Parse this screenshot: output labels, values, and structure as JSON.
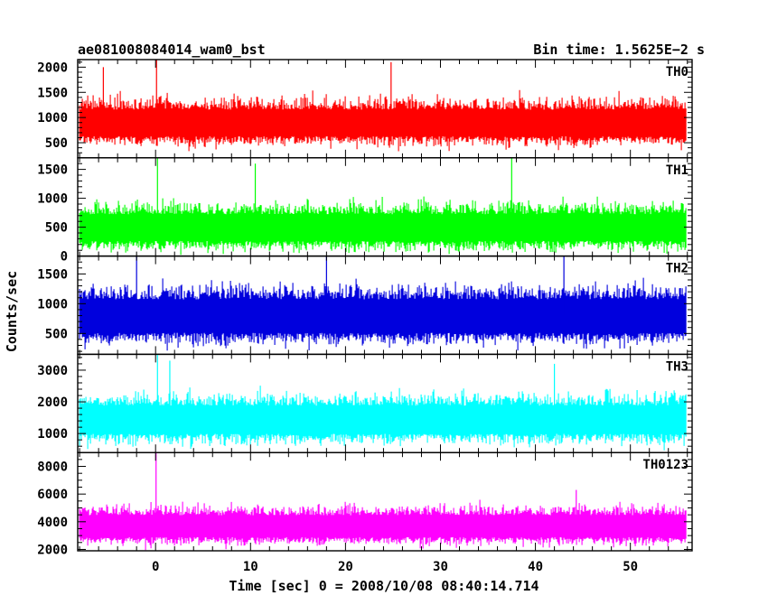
{
  "header": {
    "left_title": "ae081008084014_wam0_bst",
    "right_title": "Bin time: 1.5625E−2 s"
  },
  "chart_data": {
    "type": "line",
    "xlabel": "Time [sec] 0 = 2008/10/08 08:40:14.714",
    "ylabel": "Counts/sec",
    "xlim": [
      -8.2,
      56.5
    ],
    "x_ticks": [
      0,
      10,
      20,
      30,
      40,
      50
    ],
    "x_minor_step": 2,
    "bin_time": 0.015625,
    "panels": [
      {
        "name": "TH0",
        "color": "#ff0000",
        "ylim": [
          200,
          2150
        ],
        "y_ticks": [
          500,
          1000,
          1500,
          2000
        ],
        "y_minor_step": 100,
        "mean": 900,
        "spread": 160,
        "peak": 1550,
        "spikes": [
          [
            0.1,
            2150
          ],
          [
            24.8,
            2100
          ],
          [
            -5.5,
            2000
          ]
        ]
      },
      {
        "name": "TH1",
        "color": "#00ff00",
        "ylim": [
          0,
          1700
        ],
        "y_ticks": [
          0,
          500,
          1000,
          1500
        ],
        "y_minor_step": 100,
        "mean": 500,
        "spread": 140,
        "peak": 1200,
        "spikes": [
          [
            0.2,
            1700
          ],
          [
            10.5,
            1600
          ],
          [
            37.5,
            1700
          ]
        ]
      },
      {
        "name": "TH2",
        "color": "#0000dd",
        "ylim": [
          150,
          1800
        ],
        "y_ticks": [
          500,
          1000,
          1500
        ],
        "y_minor_step": 100,
        "mean": 800,
        "spread": 170,
        "peak": 1600,
        "spikes": [
          [
            -2.0,
            1800
          ],
          [
            18.0,
            1800
          ],
          [
            43.0,
            1800
          ]
        ]
      },
      {
        "name": "TH3",
        "color": "#00ffff",
        "ylim": [
          400,
          3500
        ],
        "y_ticks": [
          1000,
          2000,
          3000
        ],
        "y_minor_step": 200,
        "mean": 1450,
        "spread": 270,
        "peak": 2700,
        "spikes": [
          [
            0.2,
            3500
          ],
          [
            1.5,
            3300
          ],
          [
            42.0,
            3200
          ]
        ]
      },
      {
        "name": "TH0123",
        "color": "#ff00ff",
        "ylim": [
          1900,
          9000
        ],
        "y_ticks": [
          2000,
          4000,
          6000,
          8000
        ],
        "y_minor_step": 500,
        "mean": 3700,
        "spread": 480,
        "peak": 5400,
        "spikes": [
          [
            0.05,
            9000
          ],
          [
            44.3,
            6300
          ]
        ]
      }
    ]
  }
}
